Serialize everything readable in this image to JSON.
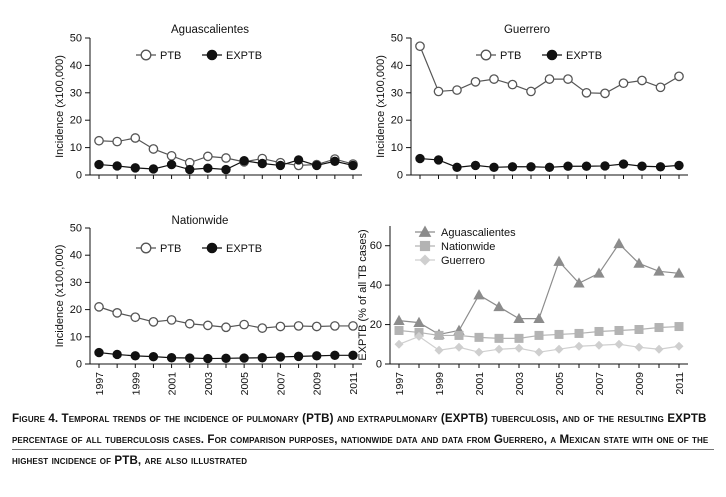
{
  "chart_data": [
    {
      "type": "line",
      "title": "Aguascalientes",
      "xlabel": "",
      "ylabel": "Incidence (x100,000)",
      "ylim": [
        0,
        50
      ],
      "yticks": [
        0,
        10,
        20,
        30,
        40,
        50
      ],
      "xticks": [
        1997,
        1999,
        2001,
        2003,
        2005,
        2007,
        2009,
        2011
      ],
      "show_xticks": false,
      "x": [
        1997,
        1998,
        1999,
        2000,
        2001,
        2002,
        2003,
        2004,
        2005,
        2006,
        2007,
        2008,
        2009,
        2010,
        2011
      ],
      "series": [
        {
          "name": "PTB",
          "marker": "open-circle",
          "values": [
            12.5,
            12.2,
            13.5,
            9.5,
            7,
            4.5,
            6.8,
            6.2,
            4.8,
            6,
            4.5,
            3.5,
            3.8,
            5.8,
            4
          ]
        },
        {
          "name": "EXPTB",
          "marker": "filled-circle",
          "values": [
            3.8,
            3.3,
            2.6,
            2.2,
            3.8,
            2,
            2.5,
            2,
            5.2,
            4.2,
            3.5,
            5.5,
            3.5,
            5,
            3.5
          ]
        }
      ]
    },
    {
      "type": "line",
      "title": "Guerrero",
      "xlabel": "",
      "ylabel": "Incidence (x100,000)",
      "ylim": [
        0,
        50
      ],
      "yticks": [
        0,
        10,
        20,
        30,
        40,
        50
      ],
      "xticks": [
        1997,
        1999,
        2001,
        2003,
        2005,
        2007,
        2009,
        2011
      ],
      "show_xticks": false,
      "x": [
        1997,
        1998,
        1999,
        2000,
        2001,
        2002,
        2003,
        2004,
        2005,
        2006,
        2007,
        2008,
        2009,
        2010,
        2011
      ],
      "series": [
        {
          "name": "PTB",
          "marker": "open-circle",
          "values": [
            47,
            30.5,
            31,
            34,
            35,
            33,
            30.5,
            35,
            35,
            30,
            29.8,
            33.5,
            34.5,
            32,
            36
          ]
        },
        {
          "name": "EXPTB",
          "marker": "filled-circle",
          "values": [
            6,
            5.5,
            2.8,
            3.5,
            2.8,
            3,
            3,
            2.8,
            3.2,
            3.2,
            3.3,
            4,
            3.2,
            3,
            3.5
          ]
        }
      ]
    },
    {
      "type": "line",
      "title": "Nationwide",
      "xlabel": "",
      "ylabel": "Incidence (x100,000)",
      "ylim": [
        0,
        50
      ],
      "yticks": [
        0,
        10,
        20,
        30,
        40,
        50
      ],
      "xticks": [
        1997,
        1999,
        2001,
        2003,
        2005,
        2007,
        2009,
        2011
      ],
      "show_xticks": true,
      "x": [
        1997,
        1998,
        1999,
        2000,
        2001,
        2002,
        2003,
        2004,
        2005,
        2006,
        2007,
        2008,
        2009,
        2010,
        2011
      ],
      "series": [
        {
          "name": "PTB",
          "marker": "open-circle",
          "values": [
            21,
            18.8,
            17.2,
            15.5,
            16.2,
            14.8,
            14.2,
            13.5,
            14.5,
            13.2,
            13.8,
            14,
            13.8,
            14,
            14
          ]
        },
        {
          "name": "EXPTB",
          "marker": "filled-circle",
          "values": [
            4.2,
            3.5,
            3,
            2.7,
            2.3,
            2.2,
            2,
            2.1,
            2.2,
            2.3,
            2.6,
            2.8,
            3,
            3.2,
            3.2
          ]
        }
      ]
    },
    {
      "type": "line",
      "title": "",
      "xlabel": "",
      "ylabel": "EXPTB (% of all TB cases)",
      "ylim": [
        0,
        70
      ],
      "yticks": [
        0,
        20,
        40,
        60
      ],
      "xticks": [
        1997,
        1999,
        2001,
        2003,
        2005,
        2007,
        2009,
        2011
      ],
      "show_xticks": true,
      "x": [
        1997,
        1998,
        1999,
        2000,
        2001,
        2002,
        2003,
        2004,
        2005,
        2006,
        2007,
        2008,
        2009,
        2010,
        2011
      ],
      "series": [
        {
          "name": "Aguascalientes",
          "marker": "triangle",
          "values": [
            22,
            21,
            15,
            17,
            35,
            29,
            23,
            23,
            52,
            41,
            46,
            61,
            51,
            47,
            46
          ]
        },
        {
          "name": "Nationwide",
          "marker": "square",
          "values": [
            17,
            16,
            14.5,
            14.5,
            13.5,
            13,
            13,
            14.5,
            15,
            15.5,
            16.5,
            17,
            17.5,
            18.5,
            19
          ]
        },
        {
          "name": "Guerrero",
          "marker": "diamond",
          "values": [
            10,
            14,
            7,
            8.5,
            6,
            7.5,
            8,
            6,
            7.5,
            9,
            9.5,
            10,
            8.5,
            7.5,
            9
          ]
        }
      ]
    }
  ],
  "caption": {
    "label": "Figure 4.",
    "text": "Temporal trends of the incidence of pulmonary (PTB) and extrapulmonary (EXPTB) tuberculosis, and of the resulting EXPTB percentage of all tuberculosis cases. For comparison purposes, nationwide data and data from Guerrero, a Mexican state with one of the highest incidence of PTB, are also illustrated"
  }
}
